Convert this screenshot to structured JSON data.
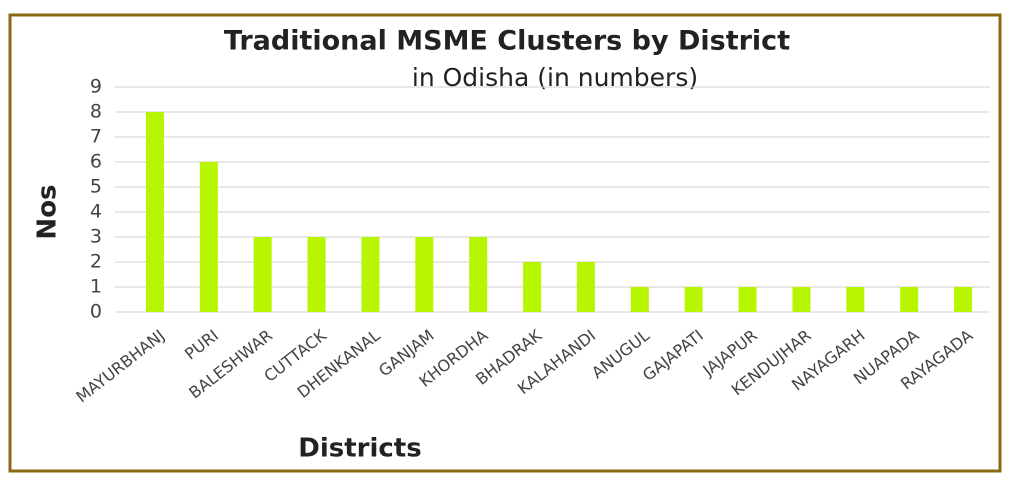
{
  "chart_data": {
    "type": "bar",
    "title": "Traditional MSME Clusters by District",
    "subtitle": "in Odisha (in numbers)",
    "x_label": "Districts",
    "y_label": "Nos",
    "categories": [
      "MAYURBHANJ",
      "PURI",
      "BALESHWAR",
      "CUTTACK",
      "DHENKANAL",
      "GANJAM",
      "KHORDHA",
      "BHADRAK",
      "KALAHANDI",
      "ANUGUL",
      "GAJAPATI",
      "JAJAPUR",
      "KENDUJHAR",
      "NAYAGARH",
      "NUAPADA",
      "RAYAGADA"
    ],
    "values": [
      8,
      6,
      3,
      3,
      3,
      3,
      3,
      2,
      2,
      1,
      1,
      1,
      1,
      1,
      1,
      1
    ],
    "color": "#b8f500",
    "ylim": [
      0,
      9
    ],
    "yticks": [
      0,
      1,
      2,
      3,
      4,
      5,
      6,
      7,
      8,
      9
    ],
    "grid": true
  }
}
